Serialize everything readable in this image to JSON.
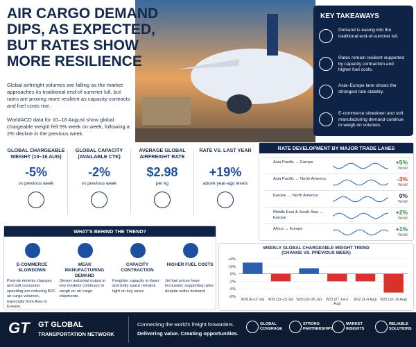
{
  "header": {
    "title": "AIR CARGO DEMAND DIPS, AS EXPECTED, BUT RATES SHOW MORE RESILIENCE",
    "paragraphs": [
      "Global airfreight volumes are falling as the market approaches its traditional end-of-summer lull, but rates are proving more resilient as capacity contracts and fuel costs rise.",
      "WorldACD data for 10–16 August show global chargeable weight fell 5% week on week, following a 2% decline in the previous week."
    ]
  },
  "key_takeaways": {
    "title": "KEY TAKEAWAYS",
    "items": [
      "Demand is easing into the traditional end-of-summer lull.",
      "Rates remain resilient supported by capacity contraction and higher fuel costs.",
      "Asia–Europe lane shows the strongest rate stability.",
      "E-commerce slowdown and soft manufacturing demand continue to weigh on volumes."
    ]
  },
  "stats": [
    {
      "label": "GLOBAL CHARGEABLE WEIGHT (10–16 AUG)",
      "value": "-5%",
      "sub": "vs previous week"
    },
    {
      "label": "GLOBAL CAPACITY (AVAILABLE CTK)",
      "value": "-2%",
      "sub": "vs previous week"
    },
    {
      "label": "AVERAGE GLOBAL AIRFREIGHT RATE",
      "value": "$2.98",
      "sub": "per kg"
    },
    {
      "label": "RATE VS. LAST YEAR",
      "value": "+19%",
      "sub": "above year-ago levels"
    }
  ],
  "rate_lanes": {
    "title": "RATE DEVELOPMENT BY MAJOR TRADE LANES",
    "rows": [
      {
        "lane": "Asia Pacific → Europe",
        "change": "+5%",
        "unit": "WoW"
      },
      {
        "lane": "Asia Pacific → North America",
        "change": "-3%",
        "unit": "WoW"
      },
      {
        "lane": "Europe → North America",
        "change": "0%",
        "unit": "WoW"
      },
      {
        "lane": "Middle East & South Asia → Europe",
        "change": "+2%",
        "unit": "WoW"
      },
      {
        "lane": "Africa → Europe",
        "change": "+1%",
        "unit": "WoW"
      }
    ]
  },
  "behind": {
    "title": "WHAT'S BEHIND THE TREND?",
    "items": [
      {
        "heading": "E-COMMERCE SLOWDOWN",
        "text": "Post-de minimis changes and soft consumer spending are reducing B2C air cargo volumes, especially from Asia to Europe."
      },
      {
        "heading": "WEAK MANUFACTURING DEMAND",
        "text": "Slower industrial output in key markets continues to weigh on air cargo shipments."
      },
      {
        "heading": "CAPACITY CONTRACTION",
        "text": "Freighter capacity is down and belly space remains tight on key lanes."
      },
      {
        "heading": "HIGHER FUEL COSTS",
        "text": "Jet fuel prices have increased, supporting rates despite softer demand."
      }
    ]
  },
  "chart_data": {
    "type": "bar",
    "title": "WEEKLY GLOBAL CHARGEABLE WEIGHT TREND",
    "subtitle": "(CHANGE VS. PREVIOUS WEEK)",
    "categories": [
      "W28 (6–12 Jul)",
      "W29 (13–19 Jul)",
      "W30 (20–26 Jul)",
      "W31 (27 Jul–2 Aug)",
      "W32 (3–9 Aug)",
      "W33 (10–16 Aug)"
    ],
    "values": [
      3,
      -2,
      1.5,
      -2,
      -2,
      -5
    ],
    "positive_color": "#2a5fae",
    "negative_color": "#d8322a",
    "ylim": [
      -6,
      4
    ],
    "yticks": [
      {
        "value": 4,
        "label": "+4%"
      },
      {
        "value": 2,
        "label": "+2%"
      },
      {
        "value": 0,
        "label": "0%"
      },
      {
        "value": -2,
        "label": "-2%"
      },
      {
        "value": -4,
        "label": "-4%"
      },
      {
        "value": -6,
        "label": "-6%"
      }
    ],
    "grid": true
  },
  "footer": {
    "logo_mark": "GT",
    "company": "GT GLOBAL",
    "company_sub": "TRANSPORTATION NETWORK",
    "tagline": "Connecting the world's freight forwarders.",
    "tagline2": "Delivering value. Creating opportunities.",
    "badges": [
      "GLOBAL COVERAGE",
      "STRONG PARTNERSHIPS",
      "MARKET INSIGHTS",
      "RELIABLE SOLUTIONS"
    ]
  }
}
